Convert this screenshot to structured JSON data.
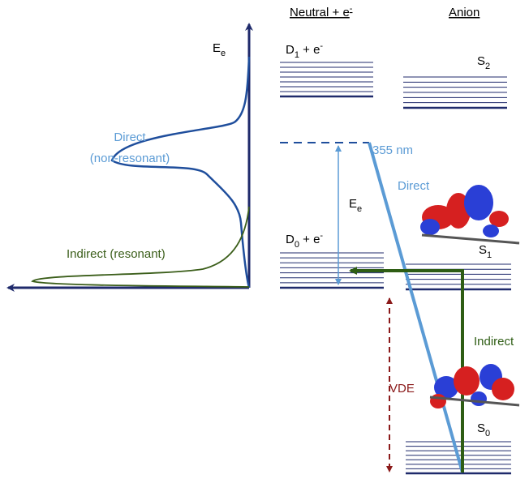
{
  "axis_label": {
    "base": "E",
    "sub": "e"
  },
  "curves": {
    "direct": {
      "line1": "Direct",
      "line2": "(non-resonant)"
    },
    "indirect": "Indirect (resonant)"
  },
  "columns": {
    "neutral": {
      "text": "Neutral + e",
      "sup": "-"
    },
    "anion": "Anion"
  },
  "levels": {
    "d1": {
      "base": "D",
      "sub": "1",
      "rest": " + e",
      "sup": "-"
    },
    "s2": {
      "base": "S",
      "sub": "2"
    },
    "d0": {
      "base": "D",
      "sub": "0",
      "rest": " + e",
      "sup": "-"
    },
    "s1": {
      "base": "S",
      "sub": "1"
    },
    "s0": {
      "base": "S",
      "sub": "0"
    }
  },
  "annotations": {
    "wavelength": "355 nm",
    "direct": "Direct",
    "electron_energy": {
      "base": "E",
      "sub": "e"
    },
    "indirect": "Indirect",
    "vde": "VDE"
  }
}
